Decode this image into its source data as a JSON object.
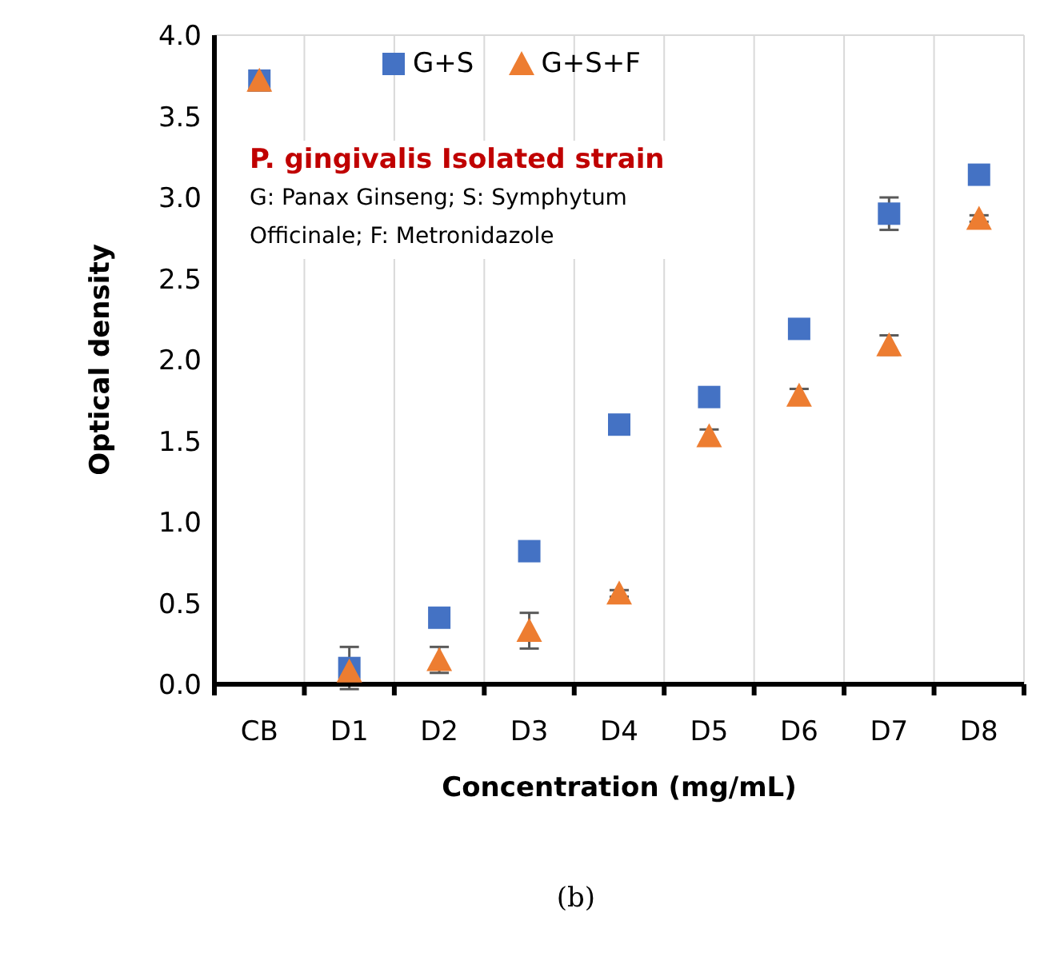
{
  "chart_data": {
    "type": "scatter",
    "xlabel": "Concentration (mg/mL)",
    "ylabel": "Optical density",
    "categories": [
      "CB",
      "D1",
      "D2",
      "D3",
      "D4",
      "D5",
      "D6",
      "D7",
      "D8"
    ],
    "series": [
      {
        "name": "G+S",
        "color": "#4472c4",
        "marker": "square",
        "values": [
          3.72,
          0.1,
          0.41,
          0.82,
          1.6,
          1.77,
          2.19,
          2.9,
          3.14
        ],
        "errors": [
          null,
          0.13,
          null,
          null,
          null,
          null,
          null,
          0.1,
          null
        ]
      },
      {
        "name": "G+S+F",
        "color": "#ed7d31",
        "marker": "triangle",
        "values": [
          3.72,
          0.08,
          0.15,
          0.33,
          0.56,
          1.53,
          1.78,
          2.09,
          2.87
        ],
        "errors": [
          null,
          null,
          0.08,
          0.11,
          0.02,
          0.04,
          0.04,
          0.06,
          0.02
        ]
      }
    ],
    "ylim": [
      0,
      4
    ],
    "yticks": [
      {
        "value": 0,
        "label": "0.0"
      },
      {
        "value": 0.5,
        "label": "0.5"
      },
      {
        "value": 1,
        "label": "1.0"
      },
      {
        "value": 1.5,
        "label": "1.5"
      },
      {
        "value": 2,
        "label": "2.0"
      },
      {
        "value": 2.5,
        "label": "2.5"
      },
      {
        "value": 3,
        "label": "3.0"
      },
      {
        "value": 3.5,
        "label": "3.5"
      },
      {
        "value": 4,
        "label": "4.0"
      }
    ],
    "grid": true,
    "legend": "top",
    "annotations": [
      "P. gingivalis Isolated strain",
      "G: Panax Ginseng; S: Symphytum Officinale; F: Metronidazole",
      "(b)"
    ]
  }
}
